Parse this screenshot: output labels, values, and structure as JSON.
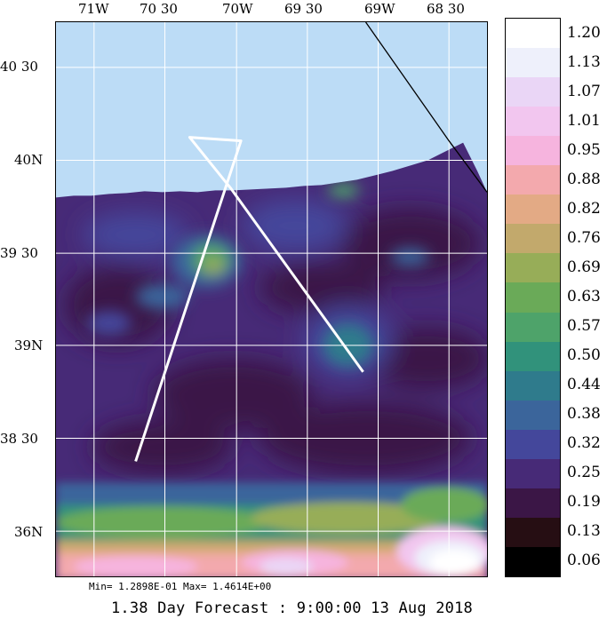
{
  "map": {
    "lon_labels": [
      "71W",
      "70 30",
      "70W",
      "69 30",
      "69W",
      "68 30"
    ],
    "lat_labels": [
      "40 30",
      "40N",
      "39 30",
      "39N",
      "38 30",
      "36N"
    ],
    "colors": {
      "land_water_bg": "#bcdcf6",
      "grid": "#ffffff",
      "track": "#ffffff",
      "coast": "#000000"
    }
  },
  "colorbar": {
    "levels": [
      "1.20",
      "1.13",
      "1.07",
      "1.01",
      "0.95",
      "0.88",
      "0.82",
      "0.76",
      "0.69",
      "0.63",
      "0.57",
      "0.50",
      "0.44",
      "0.38",
      "0.32",
      "0.25",
      "0.19",
      "0.13",
      "0.06"
    ],
    "colors": [
      "#ffffff",
      "#eef0fb",
      "#ead6f6",
      "#f2c6ef",
      "#f6b4de",
      "#f3a9ad",
      "#e3aa85",
      "#c2a96c",
      "#97ad58",
      "#6aaa58",
      "#4ea36a",
      "#31927b",
      "#2f7b8c",
      "#3b659b",
      "#44479b",
      "#472a77",
      "#3b1646",
      "#260e13",
      "#000000"
    ]
  },
  "stats": {
    "min_max": "Min= 1.2898E-01  Max= 1.4614E+00"
  },
  "caption": {
    "forecast": "1.38 Day Forecast :  9:00:00  13 Aug 2018"
  }
}
